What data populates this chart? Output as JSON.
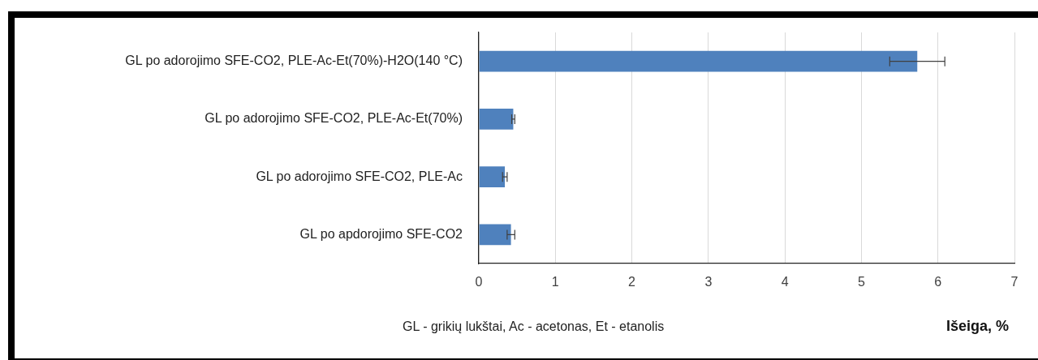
{
  "chart_data": {
    "type": "bar",
    "orientation": "horizontal",
    "xlabel": "Išeiga, %",
    "categories": [
      "GL po adorojimo SFE-CO2, PLE-Ac-Et(70%)-H2O(140 °C)",
      "GL po adorojimo SFE-CO2, PLE-Ac-Et(70%)",
      "GL po adorojimo SFE-CO2, PLE-Ac",
      "GL po apdorojimo SFE-CO2"
    ],
    "values": [
      5.73,
      0.45,
      0.34,
      0.42
    ],
    "errors": [
      0.36,
      0.02,
      0.03,
      0.05
    ],
    "color": "#4f81bd",
    "xlim": [
      0,
      7
    ],
    "xticks": [
      0,
      1,
      2,
      3,
      4,
      5,
      6,
      7
    ],
    "grid": "x",
    "annotations": [
      "GL - grikių lukštai, Ac - acetonas, Et - etanolis"
    ]
  }
}
